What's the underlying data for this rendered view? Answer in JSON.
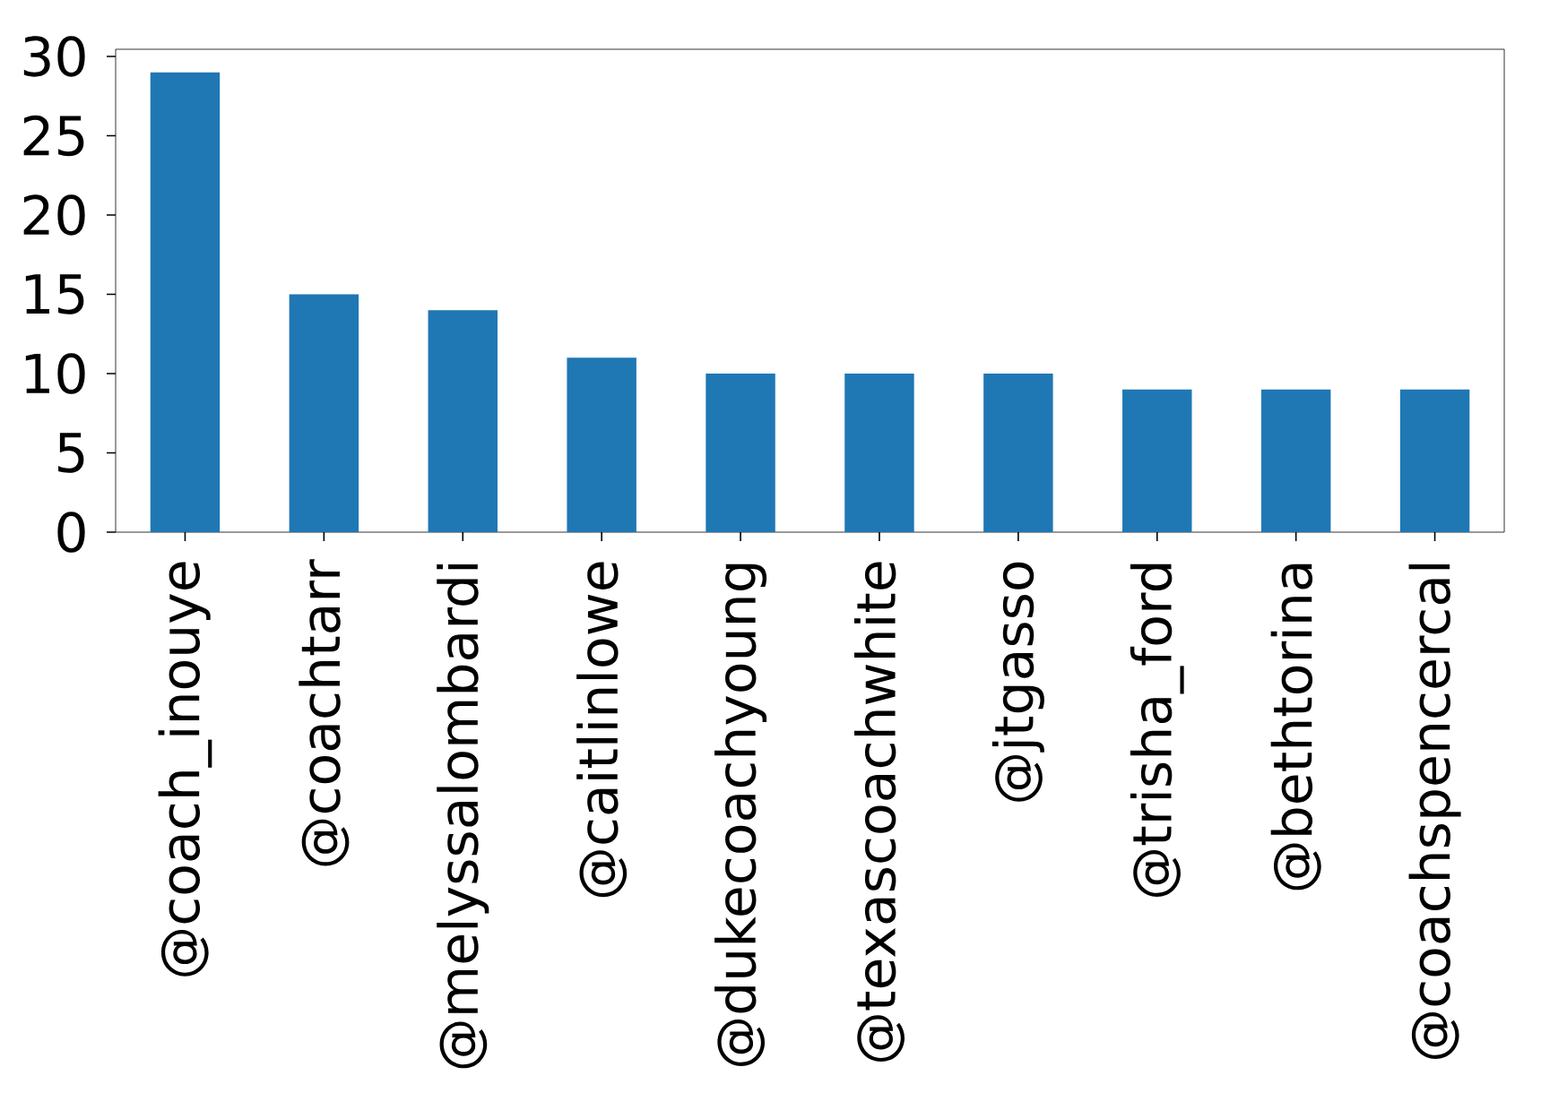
{
  "chart_data": {
    "type": "bar",
    "categories": [
      "@coach_inouye",
      "@coachtarr",
      "@melyssalombardi",
      "@caitlinlowe",
      "@dukecoachyoung",
      "@texascoachwhite",
      "@jtgasso",
      "@trisha_ford",
      "@bethtorina",
      "@coachspencercal"
    ],
    "values": [
      29,
      15,
      14,
      11,
      10,
      10,
      10,
      9,
      9,
      9
    ],
    "color": "#1f77b4",
    "ylim": [
      0,
      30.45
    ],
    "yticks": [
      0,
      5,
      10,
      15,
      20,
      25,
      30
    ]
  }
}
